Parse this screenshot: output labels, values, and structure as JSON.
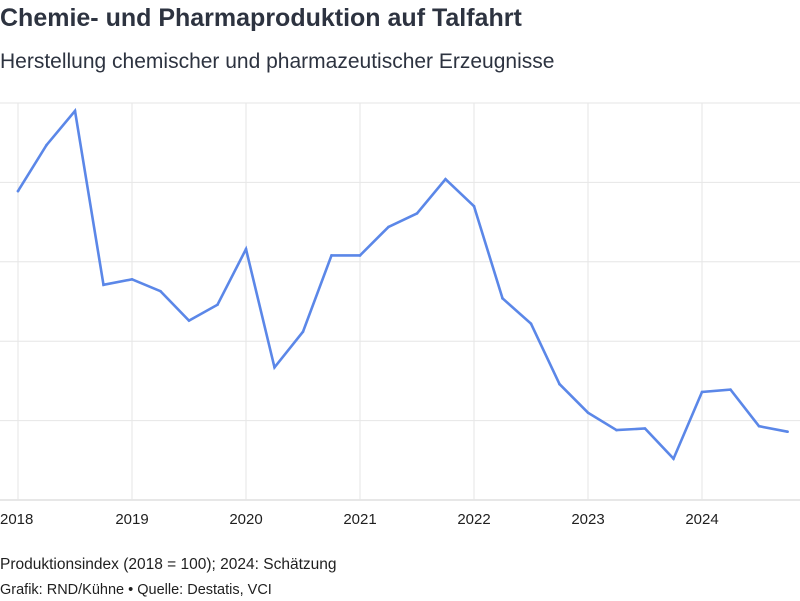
{
  "header": {
    "title": "Chemie- und Pharmaproduktion auf Talfahrt",
    "subtitle": "Herstellung chemischer und pharmazeutischer Erzeugnisse"
  },
  "footer": {
    "note": "Produktionsindex (2018 = 100); 2024: Schätzung",
    "credit_prefix": "Grafik: RND/Kühne",
    "credit_separator": "•",
    "credit_source": "Quelle: Destatis, VCI"
  },
  "chart_data": {
    "type": "line",
    "title": "Chemie- und Pharmaproduktion auf Talfahrt",
    "subtitle": "Herstellung chemischer und pharmazeutischer Erzeugnisse",
    "xlabel": "",
    "ylabel": "",
    "grid": true,
    "x_ticks": [
      "2018",
      "2019",
      "2020",
      "2021",
      "2022",
      "2023",
      "2024"
    ],
    "xlim": [
      2018,
      2024.875
    ],
    "ylim": [
      75,
      125
    ],
    "color": "#5b87e8",
    "series": [
      {
        "x": [
          2018.0,
          2018.25,
          2018.5,
          2018.75,
          2019.0,
          2019.25,
          2019.5,
          2019.75,
          2020.0,
          2020.25,
          2020.5,
          2020.75,
          2021.0,
          2021.25,
          2021.5,
          2021.75,
          2022.0,
          2022.25,
          2022.5,
          2022.75,
          2023.0,
          2023.25,
          2023.5,
          2023.75,
          2024.0,
          2024.25,
          2024.5,
          2024.75
        ],
        "values": [
          113.9,
          119.7,
          124.0,
          102.1,
          102.8,
          101.3,
          97.6,
          99.6,
          106.6,
          91.7,
          96.2,
          105.8,
          105.8,
          109.4,
          111.1,
          115.4,
          112.0,
          100.4,
          97.2,
          89.6,
          86.0,
          83.8,
          84.0,
          80.2,
          88.6,
          88.9,
          84.3,
          83.6
        ]
      }
    ]
  }
}
